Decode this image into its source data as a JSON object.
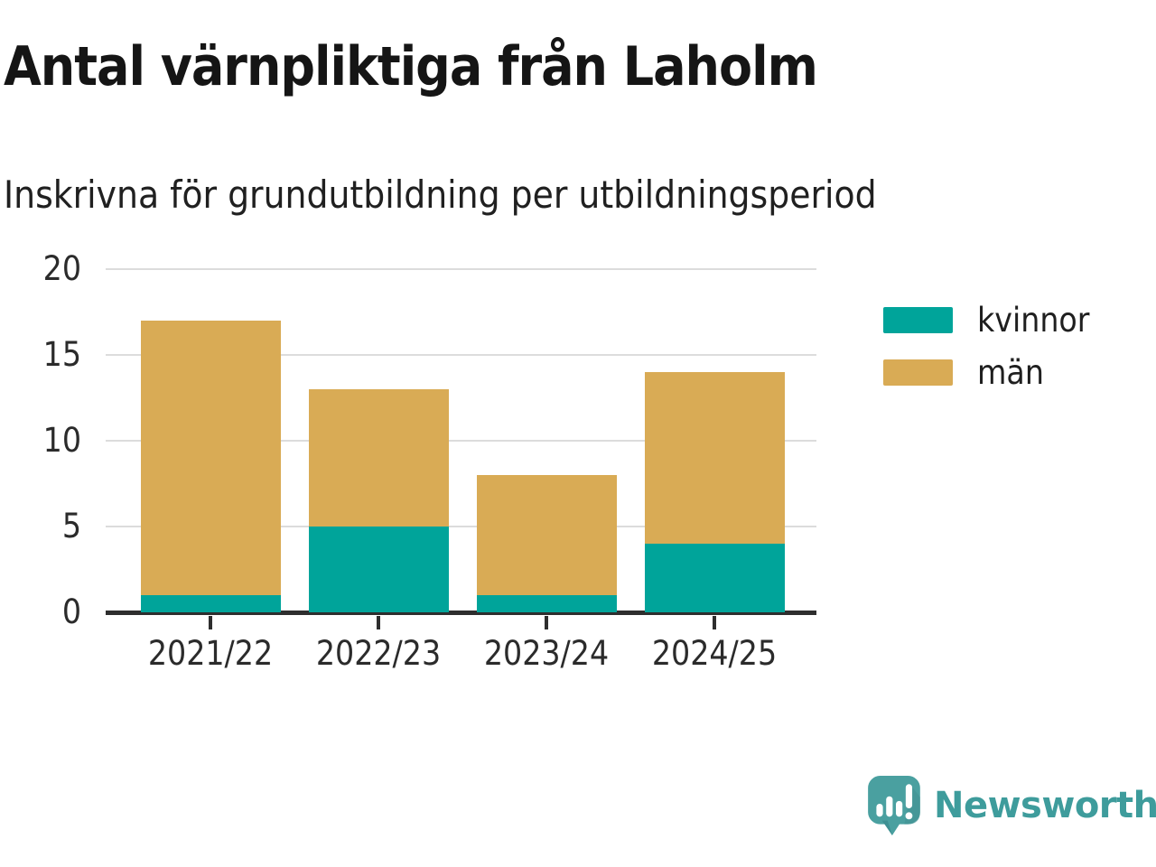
{
  "chart": {
    "title": "Antal värnpliktiga från Laholm",
    "subtitle": "Inskrivna för grundutbildning per utbildningsperiod"
  },
  "chart_data": {
    "type": "bar",
    "stacked": true,
    "categories": [
      "2021/22",
      "2022/23",
      "2023/24",
      "2024/25"
    ],
    "series": [
      {
        "name": "kvinnor",
        "color": "#00A49A",
        "values": [
          1,
          5,
          1,
          4
        ]
      },
      {
        "name": "män",
        "color": "#D9AB55",
        "values": [
          16,
          8,
          7,
          10
        ]
      }
    ],
    "totals": [
      17,
      13,
      8,
      14
    ],
    "title": "Antal värnpliktiga från Laholm",
    "subtitle": "Inskrivna för grundutbildning per utbildningsperiod",
    "xlabel": "",
    "ylabel": "",
    "ylim": [
      0,
      20
    ],
    "yticks": [
      0,
      5,
      10,
      15,
      20
    ],
    "grid": "horizontal",
    "legend_position": "right"
  },
  "colors": {
    "axis": "#2E2E2E",
    "gridline": "#DCDCDC",
    "text": "#1F1F1F",
    "background": "#FFFFFF"
  },
  "branding": {
    "wordmark": "Newsworthy",
    "logo_icon": "newsworthy-speech-bubble-bar-chart-icon",
    "logo_bubble_color": "#4AA0A0",
    "wordmark_color": "#3E9C9C"
  }
}
